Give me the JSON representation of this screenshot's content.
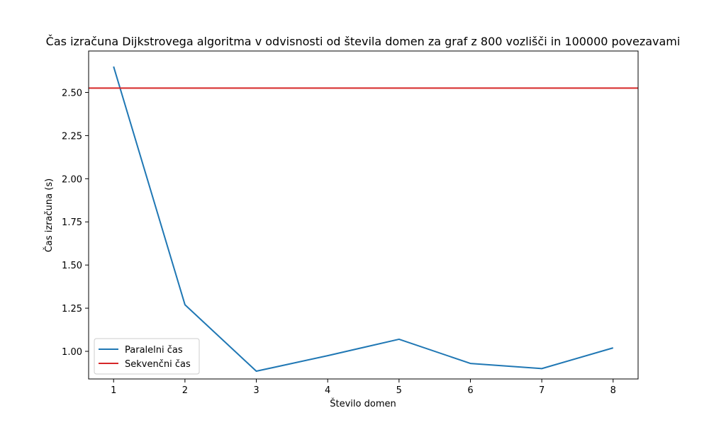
{
  "chart_data": {
    "type": "line",
    "title": "Čas izračuna Dijkstrovega algoritma v odvisnosti od števila domen za graf z 800 vozlišči in 100000 povezavami",
    "xlabel": "Število domen",
    "ylabel": "Čas izračuna (s)",
    "x": [
      1,
      2,
      3,
      4,
      5,
      6,
      7,
      8
    ],
    "xlim": [
      0.65,
      8.35
    ],
    "ylim": [
      0.84,
      2.74
    ],
    "xticks": [
      1,
      2,
      3,
      4,
      5,
      6,
      7,
      8
    ],
    "yticks": [
      1.0,
      1.25,
      1.5,
      1.75,
      2.0,
      2.25,
      2.5
    ],
    "ytick_labels": [
      "1.00",
      "1.25",
      "1.50",
      "1.75",
      "2.00",
      "2.25",
      "2.50"
    ],
    "grid": false,
    "legend_position": "lower-left",
    "series": [
      {
        "name": "Paralelni čas",
        "color": "#1f77b4",
        "values": [
          2.65,
          1.27,
          0.885,
          0.975,
          1.07,
          0.93,
          0.9,
          1.02
        ]
      },
      {
        "name": "Sekvenčni čas",
        "color": "#d62728",
        "kind": "hline",
        "value": 2.525
      }
    ]
  }
}
